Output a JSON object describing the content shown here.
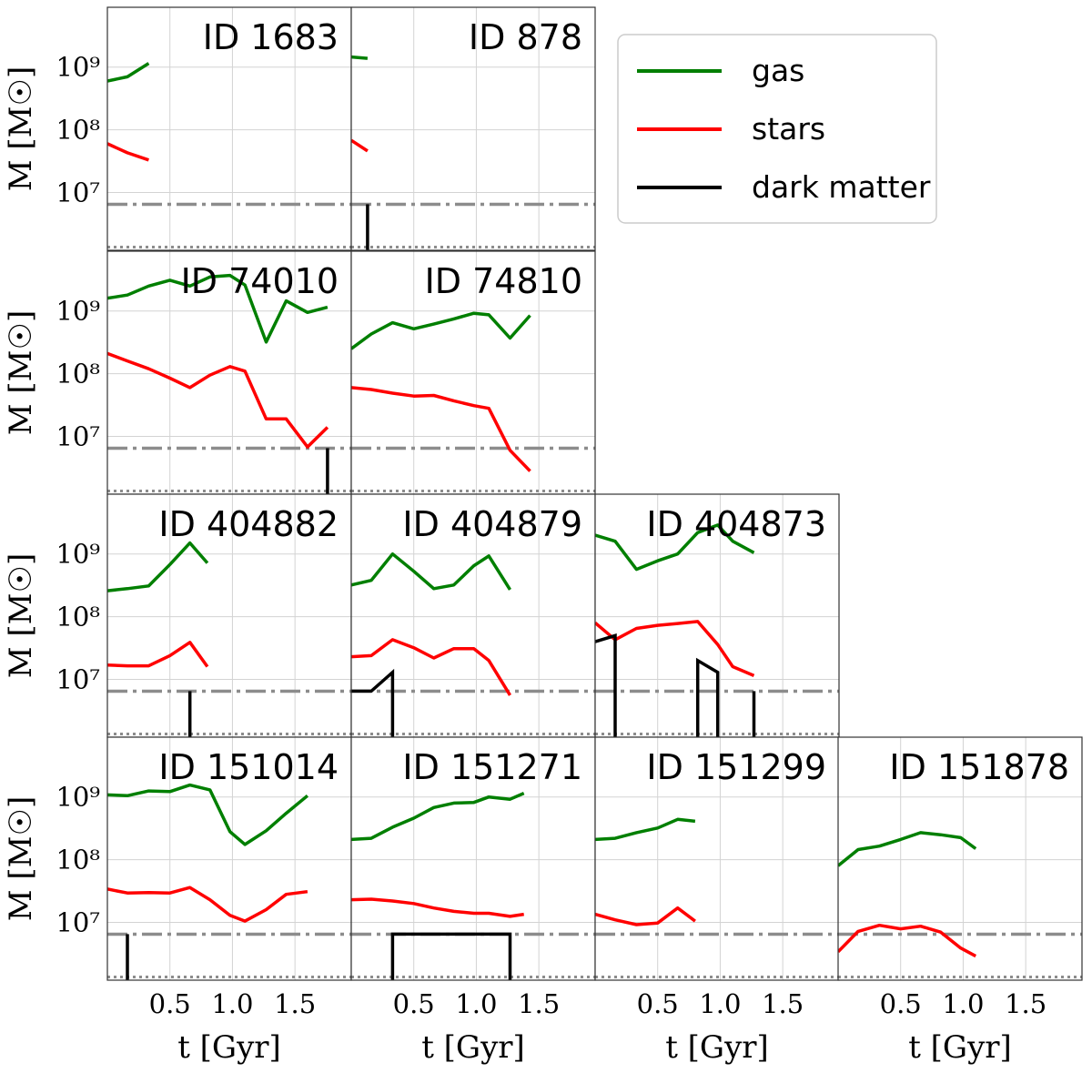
{
  "colors": {
    "gas": "#007f00",
    "stars": "#ff0000",
    "dark_matter": "#000000",
    "ref_line": "#8c8c8c",
    "grid": "#d3d3d3",
    "frame": "#333333"
  },
  "axis_labels": {
    "ylabel": "M [M☉]",
    "xlabel": "t [Gyr]"
  },
  "legend": {
    "placement": "top-right",
    "entries": [
      {
        "label": "gas",
        "color": "#007f00"
      },
      {
        "label": "stars",
        "color": "#ff0000"
      },
      {
        "label": "dark matter",
        "color": "#000000"
      }
    ]
  },
  "chart_data": {
    "type": "line",
    "layout": "4x4 lower-triangular grid of small-multiple panels with shared axes",
    "xlim": [
      0.0,
      1.95
    ],
    "ylim": [
      1200000,
      9000000000
    ],
    "yscale": "log",
    "grid": true,
    "x_ticks": [
      0.5,
      1.0,
      1.5
    ],
    "x_tick_labels": [
      "0.5",
      "1.0",
      "1.5"
    ],
    "y_ticks": [
      10000000,
      100000000,
      1000000000
    ],
    "y_tick_labels": [
      "10⁷",
      "10⁸",
      "10⁹"
    ],
    "reference_lines": [
      {
        "style": "dash-dot",
        "y": 6500000
      },
      {
        "style": "dotted",
        "y": 1350000
      }
    ],
    "panels": [
      {
        "row": 0,
        "col": 0,
        "title": "ID 1683",
        "series": [
          {
            "name": "gas",
            "x": [
              0.0,
              0.16,
              0.33
            ],
            "y": [
              600000000,
              700000000,
              1150000000
            ]
          },
          {
            "name": "stars",
            "x": [
              0.0,
              0.16,
              0.33
            ],
            "y": [
              60000000,
              43000000,
              33000000
            ]
          }
        ],
        "dm": []
      },
      {
        "row": 0,
        "col": 1,
        "title": "ID 878",
        "series": [
          {
            "name": "gas",
            "x": [
              0.0,
              0.13
            ],
            "y": [
              1450000000,
              1380000000
            ]
          },
          {
            "name": "stars",
            "x": [
              0.0,
              0.13
            ],
            "y": [
              68000000,
              46000000
            ]
          }
        ],
        "dm": [
          {
            "x": [
              0.13,
              0.13
            ],
            "y": [
              1200000,
              6500000
            ]
          }
        ]
      },
      {
        "row": 1,
        "col": 0,
        "title": "ID 74010",
        "series": [
          {
            "name": "gas",
            "x": [
              0.0,
              0.16,
              0.33,
              0.5,
              0.66,
              0.82,
              0.98,
              1.1,
              1.27,
              1.43,
              1.6,
              1.76
            ],
            "y": [
              1600000000,
              1800000000,
              2500000000,
              3100000000,
              2500000000,
              3500000000,
              3700000000,
              2600000000,
              320000000,
              1450000000,
              950000000,
              1150000000
            ]
          },
          {
            "name": "stars",
            "x": [
              0.0,
              0.16,
              0.33,
              0.5,
              0.66,
              0.82,
              0.98,
              1.1,
              1.27,
              1.43,
              1.6,
              1.76
            ],
            "y": [
              210000000,
              160000000,
              120000000,
              85000000,
              60000000,
              95000000,
              130000000,
              110000000,
              19000000,
              19000000,
              6800000,
              14000000
            ]
          }
        ],
        "dm": [
          {
            "x": [
              1.76,
              1.76
            ],
            "y": [
              1200000,
              6500000
            ]
          }
        ]
      },
      {
        "row": 1,
        "col": 1,
        "title": "ID 74810",
        "series": [
          {
            "name": "gas",
            "x": [
              0.0,
              0.16,
              0.33,
              0.5,
              0.66,
              0.82,
              0.98,
              1.1,
              1.27,
              1.43
            ],
            "y": [
              250000000,
              430000000,
              650000000,
              520000000,
              620000000,
              750000000,
              920000000,
              870000000,
              370000000,
              850000000
            ]
          },
          {
            "name": "stars",
            "x": [
              0.0,
              0.16,
              0.33,
              0.5,
              0.66,
              0.82,
              0.98,
              1.1,
              1.27,
              1.43
            ],
            "y": [
              60000000,
              56000000,
              49000000,
              44000000,
              45000000,
              37000000,
              31000000,
              28000000,
              6000000,
              2800000
            ]
          }
        ],
        "dm": []
      },
      {
        "row": 2,
        "col": 0,
        "title": "ID 404882",
        "series": [
          {
            "name": "gas",
            "x": [
              0.0,
              0.16,
              0.33,
              0.5,
              0.66,
              0.8
            ],
            "y": [
              260000000,
              280000000,
              310000000,
              680000000,
              1500000000,
              720000000
            ]
          },
          {
            "name": "stars",
            "x": [
              0.0,
              0.16,
              0.33,
              0.5,
              0.66,
              0.8
            ],
            "y": [
              17000000,
              16500000,
              16500000,
              24000000,
              39000000,
              16000000
            ]
          }
        ],
        "dm": [
          {
            "x": [
              0.66,
              0.66
            ],
            "y": [
              1200000,
              6500000
            ]
          }
        ]
      },
      {
        "row": 2,
        "col": 1,
        "title": "ID 404879",
        "series": [
          {
            "name": "gas",
            "x": [
              0.0,
              0.16,
              0.33,
              0.5,
              0.66,
              0.82,
              0.98,
              1.1,
              1.27
            ],
            "y": [
              320000000,
              380000000,
              1000000000,
              530000000,
              280000000,
              320000000,
              650000000,
              930000000,
              270000000
            ]
          },
          {
            "name": "stars",
            "x": [
              0.0,
              0.16,
              0.33,
              0.5,
              0.66,
              0.82,
              0.98,
              1.1,
              1.27
            ],
            "y": [
              23000000,
              24000000,
              43000000,
              32000000,
              22000000,
              31000000,
              31000000,
              20000000,
              5600000
            ]
          }
        ],
        "dm": [
          {
            "x": [
              0.0,
              0.16,
              0.33,
              0.33
            ],
            "y": [
              6500000,
              6500000,
              13000000,
              1200000
            ]
          }
        ]
      },
      {
        "row": 2,
        "col": 2,
        "title": "ID 404873",
        "series": [
          {
            "name": "gas",
            "x": [
              0.0,
              0.16,
              0.33,
              0.5,
              0.66,
              0.82,
              0.98,
              1.1,
              1.27
            ],
            "y": [
              2000000000,
              1600000000,
              570000000,
              780000000,
              1000000000,
              2200000000,
              2900000000,
              1600000000,
              1050000000
            ]
          },
          {
            "name": "stars",
            "x": [
              0.0,
              0.16,
              0.33,
              0.5,
              0.66,
              0.82,
              0.98,
              1.1,
              1.27
            ],
            "y": [
              80000000,
              43000000,
              65000000,
              73000000,
              78000000,
              84000000,
              36000000,
              16000000,
              11500000
            ]
          }
        ],
        "dm": [
          {
            "x": [
              0.0,
              0.16,
              0.16
            ],
            "y": [
              40000000,
              50000000,
              1200000
            ]
          },
          {
            "x": [
              0.82,
              0.82,
              0.98,
              0.98
            ],
            "y": [
              1200000,
              20000000,
              13000000,
              1200000
            ]
          },
          {
            "x": [
              1.27,
              1.27
            ],
            "y": [
              1200000,
              6500000
            ]
          }
        ]
      },
      {
        "row": 3,
        "col": 0,
        "title": "ID 151014",
        "series": [
          {
            "name": "gas",
            "x": [
              0.0,
              0.16,
              0.33,
              0.5,
              0.66,
              0.82,
              0.98,
              1.1,
              1.27,
              1.43,
              1.6
            ],
            "y": [
              1080000000,
              1050000000,
              1250000000,
              1220000000,
              1550000000,
              1300000000,
              280000000,
              175000000,
              290000000,
              550000000,
              1050000000
            ]
          },
          {
            "name": "stars",
            "x": [
              0.0,
              0.16,
              0.33,
              0.5,
              0.66,
              0.82,
              0.98,
              1.1,
              1.27,
              1.43,
              1.6
            ],
            "y": [
              34000000,
              29500000,
              30000000,
              29500000,
              36000000,
              23000000,
              13000000,
              10500000,
              16000000,
              28000000,
              31000000
            ]
          }
        ],
        "dm": [
          {
            "x": [
              0.16,
              0.16
            ],
            "y": [
              1200000,
              6500000
            ]
          }
        ]
      },
      {
        "row": 3,
        "col": 1,
        "title": "ID 151271",
        "series": [
          {
            "name": "gas",
            "x": [
              0.0,
              0.16,
              0.33,
              0.5,
              0.66,
              0.82,
              0.98,
              1.1,
              1.27,
              1.38
            ],
            "y": [
              210000000,
              220000000,
              330000000,
              460000000,
              680000000,
              800000000,
              820000000,
              1000000000,
              920000000,
              1150000000
            ]
          },
          {
            "name": "stars",
            "x": [
              0.0,
              0.16,
              0.33,
              0.5,
              0.66,
              0.82,
              0.98,
              1.1,
              1.27,
              1.38
            ],
            "y": [
              23000000,
              23500000,
              22000000,
              20000000,
              17000000,
              15000000,
              14000000,
              14000000,
              12500000,
              13500000
            ]
          }
        ],
        "dm": [
          {
            "x": [
              0.33,
              0.33,
              1.27,
              1.27
            ],
            "y": [
              1200000,
              6500000,
              6500000,
              1200000
            ]
          }
        ]
      },
      {
        "row": 3,
        "col": 2,
        "title": "ID 151299",
        "series": [
          {
            "name": "gas",
            "x": [
              0.0,
              0.16,
              0.33,
              0.5,
              0.66,
              0.8
            ],
            "y": [
              210000000,
              220000000,
              270000000,
              320000000,
              440000000,
              410000000
            ]
          },
          {
            "name": "stars",
            "x": [
              0.0,
              0.16,
              0.33,
              0.5,
              0.66,
              0.8
            ],
            "y": [
              13500000,
              11000000,
              9200000,
              9800000,
              17000000,
              10500000
            ]
          }
        ],
        "dm": []
      },
      {
        "row": 3,
        "col": 3,
        "title": "ID 151878",
        "series": [
          {
            "name": "gas",
            "x": [
              0.0,
              0.16,
              0.33,
              0.5,
              0.66,
              0.82,
              0.98,
              1.1
            ],
            "y": [
              80000000,
              145000000,
              165000000,
              210000000,
              270000000,
              250000000,
              225000000,
              150000000
            ]
          },
          {
            "name": "stars",
            "x": [
              0.0,
              0.16,
              0.33,
              0.5,
              0.66,
              0.82,
              0.98,
              1.1
            ],
            "y": [
              3400000,
              7200000,
              9000000,
              7900000,
              8700000,
              7000000,
              3900000,
              2900000
            ]
          }
        ],
        "dm": []
      }
    ]
  }
}
